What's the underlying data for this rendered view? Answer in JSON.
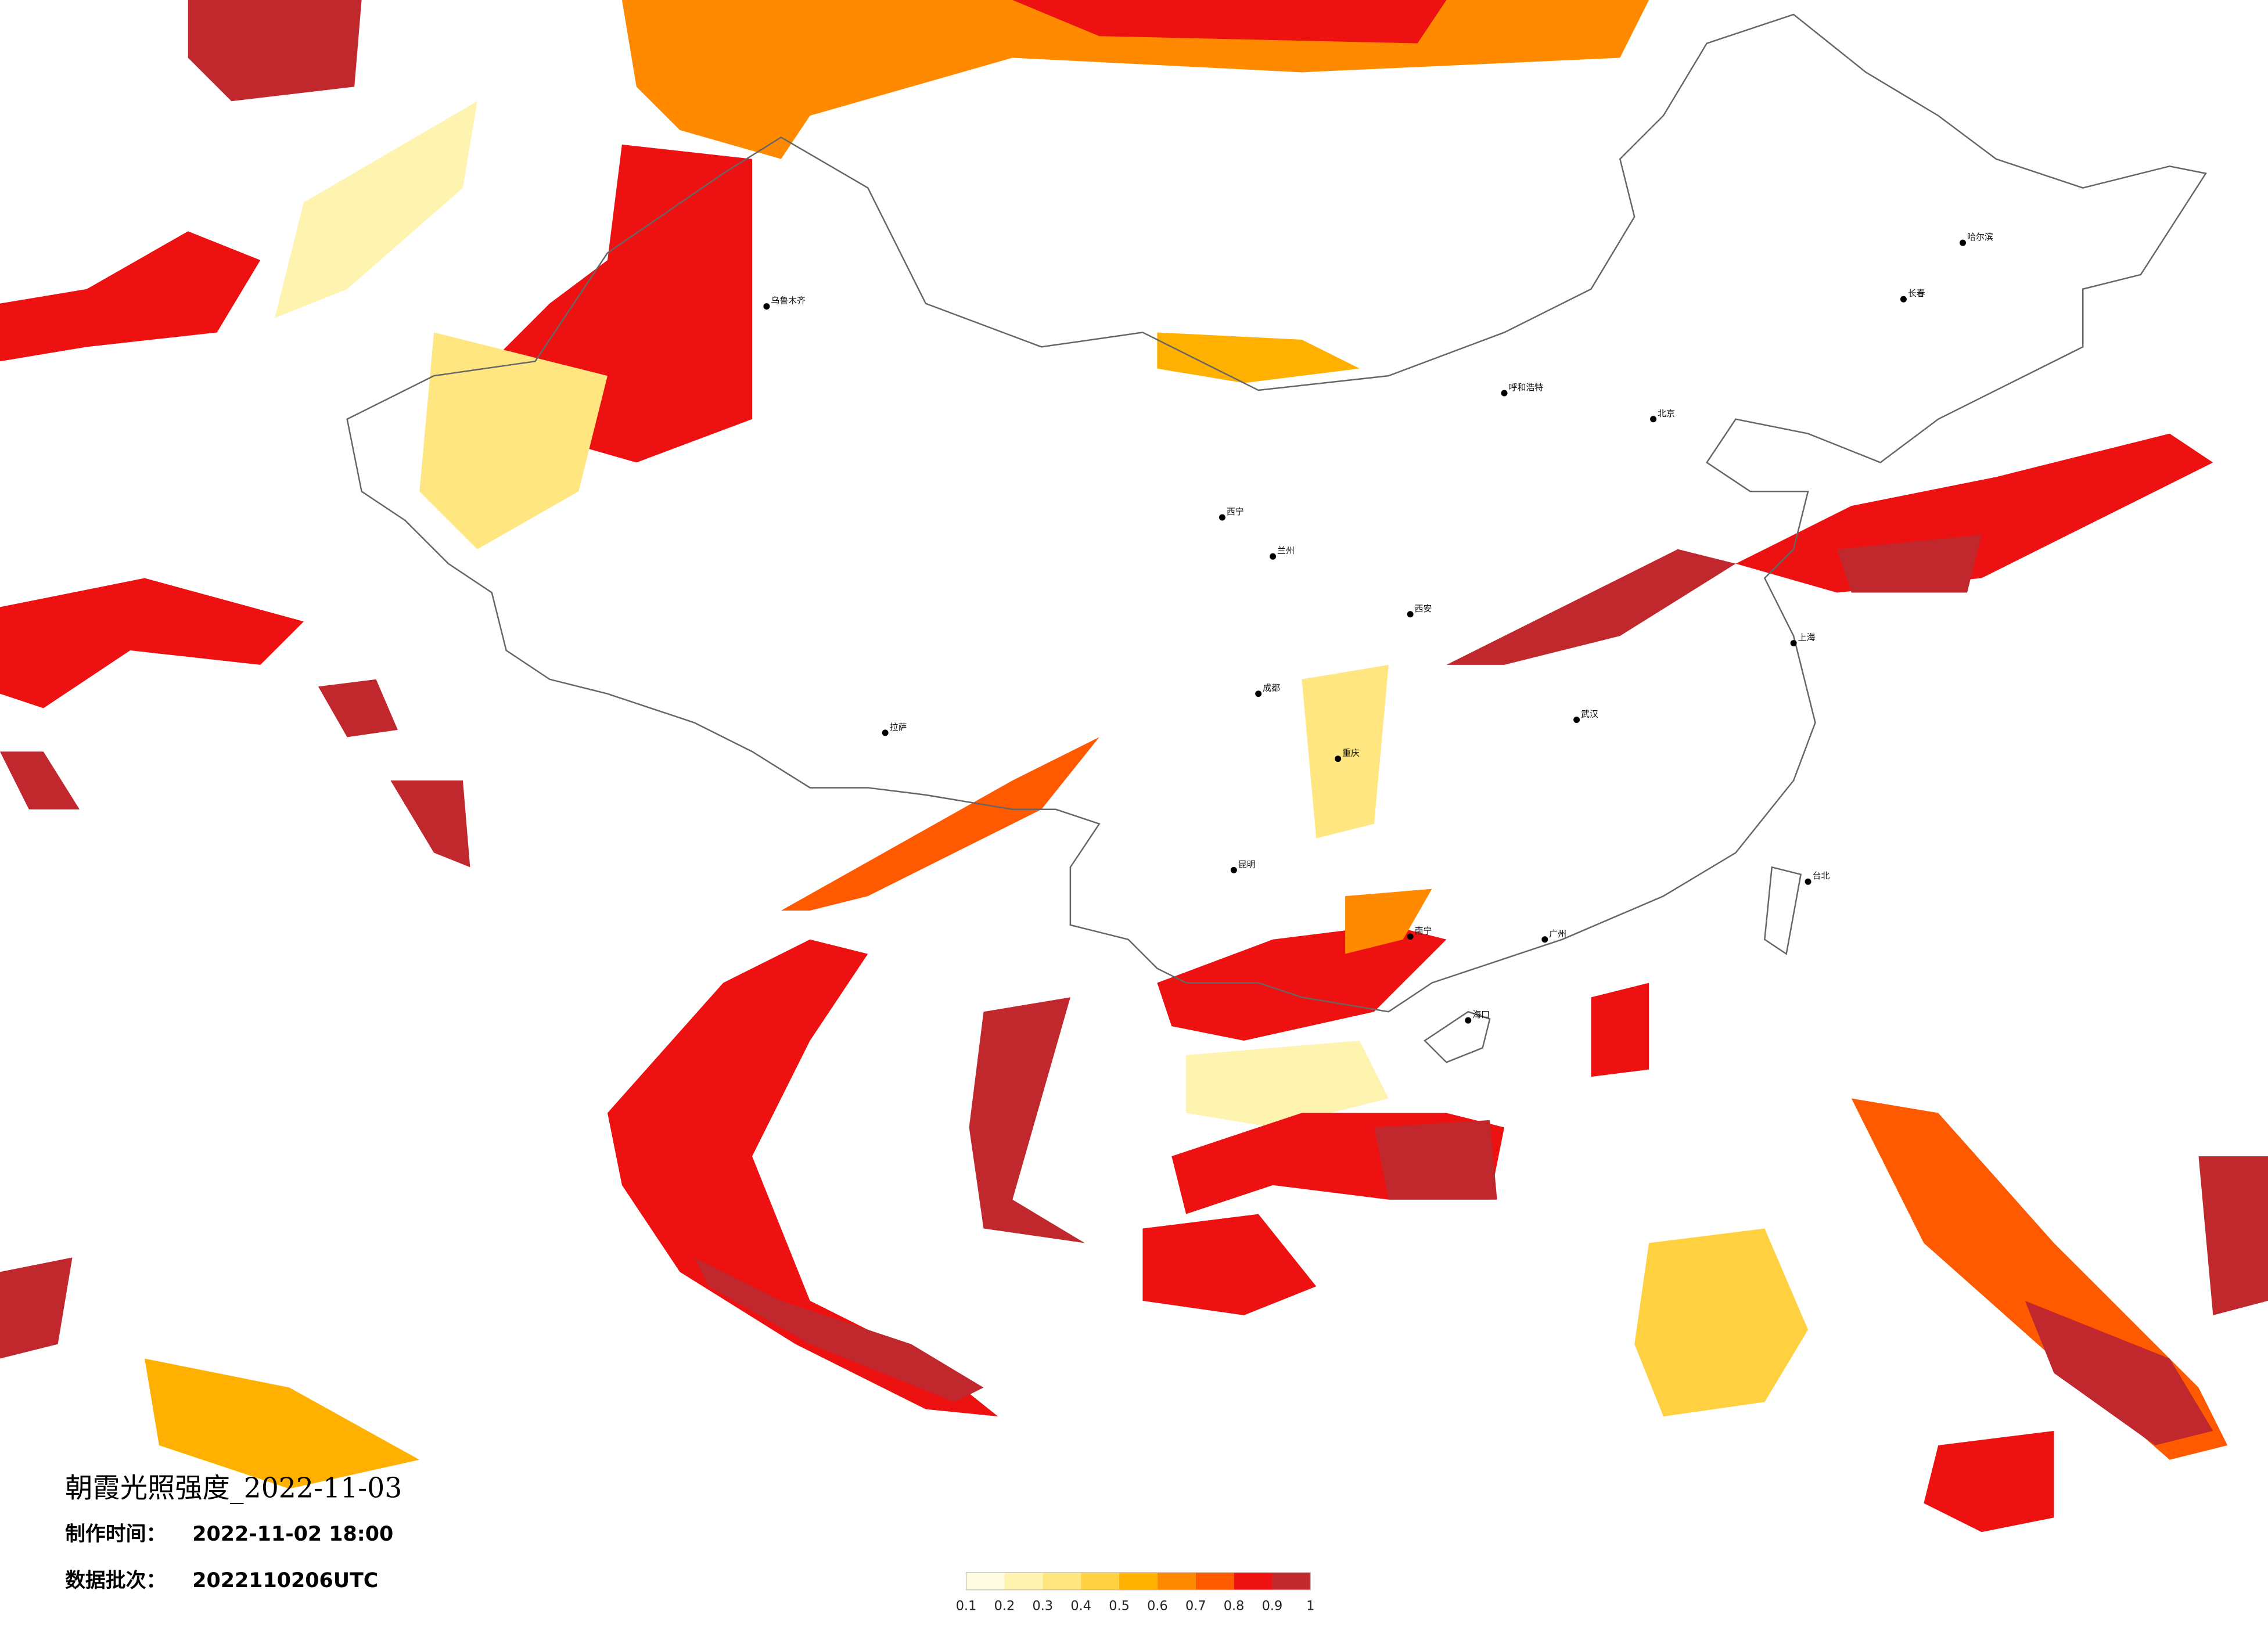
{
  "title": "朝霞光照强度_2022-11-03",
  "production_time": {
    "label": "制作时间：",
    "value": "2022-11-02 18:00"
  },
  "data_batch": {
    "label": "数据批次：",
    "value": "2022110206UTC"
  },
  "legend": {
    "colors": [
      "#fffbe0",
      "#fff3b0",
      "#ffe680",
      "#ffd040",
      "#ffb000",
      "#ff8a00",
      "#ff5a00",
      "#ee1111",
      "#c0282d"
    ],
    "ticks": [
      0.1,
      0.2,
      0.3,
      0.4,
      0.5,
      0.6,
      0.7,
      0.8,
      0.9,
      1
    ]
  },
  "cities": [
    "北京",
    "哈尔滨",
    "长春",
    "呼和浩特",
    "乌鲁木齐",
    "拉萨",
    "成都",
    "重庆",
    "武汉",
    "广州",
    "昆明",
    "西宁",
    "兰州",
    "西安",
    "海口",
    "台北",
    "南宁",
    "上海"
  ]
}
